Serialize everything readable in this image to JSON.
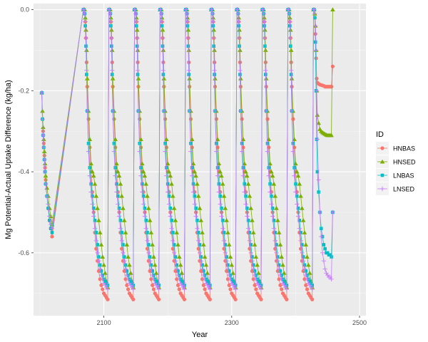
{
  "chart_data": {
    "type": "scatter",
    "xlabel": "Year",
    "ylabel": "Mg Potential-Actual Uptake Difference (kg/ha)",
    "x_ticks": [
      2100,
      2300,
      2500
    ],
    "y_ticks": [
      0.0,
      -0.2,
      -0.4,
      -0.6
    ],
    "y_tick_labels": [
      "0.0",
      "-0.2",
      "-0.4",
      "-0.6"
    ],
    "xlim": [
      1990,
      2510
    ],
    "ylim": [
      -0.755,
      0.015
    ],
    "grid": true,
    "legend": {
      "title": "ID",
      "position": "right"
    },
    "colors": {
      "HNBAS": "#F8766D",
      "HNSED": "#7CAE00",
      "LNBAS": "#00BFC4",
      "LNSED": "#C77CFF"
    },
    "cycle": {
      "starts": [
        2003,
        2068,
        2108,
        2148,
        2188,
        2228,
        2268,
        2308,
        2348,
        2388,
        2428
      ],
      "last_year": 2500,
      "offsets": [
        0,
        1,
        2,
        3,
        4,
        5,
        6,
        8,
        10,
        12,
        14,
        16,
        18,
        20,
        22,
        24,
        26,
        28,
        30,
        32,
        34,
        36,
        38,
        40
      ]
    },
    "series": [
      {
        "name": "HNBAS",
        "shape": "circle",
        "first_cycle": [
          -0.205,
          -0.27,
          -0.3,
          -0.33,
          -0.36,
          -0.39,
          -0.42,
          -0.46,
          -0.49,
          -0.52,
          -0.54,
          -0.56
        ],
        "cycle_values": [
          0.0,
          0.0,
          -0.01,
          -0.03,
          -0.07,
          -0.13,
          -0.19,
          -0.27,
          -0.34,
          -0.4,
          -0.45,
          -0.5,
          -0.55,
          -0.59,
          -0.62,
          -0.645,
          -0.665,
          -0.68,
          -0.69,
          -0.7,
          -0.705,
          -0.71,
          -0.715,
          -0.72
        ],
        "final_cycle": [
          0.0,
          0.0,
          -0.02,
          -0.06,
          -0.12,
          -0.17,
          -0.18,
          -0.183,
          -0.185,
          -0.186,
          -0.187,
          -0.188,
          -0.19,
          -0.19,
          -0.19,
          -0.19,
          -0.19,
          -0.19,
          -0.14
        ]
      },
      {
        "name": "HNSED",
        "shape": "triangle",
        "first_cycle": [
          -0.205,
          -0.25,
          -0.29,
          -0.32,
          -0.35,
          -0.38,
          -0.41,
          -0.44,
          -0.46,
          -0.49,
          -0.51,
          -0.53
        ],
        "cycle_values": [
          0.0,
          0.0,
          0.0,
          -0.02,
          -0.05,
          -0.1,
          -0.17,
          -0.25,
          -0.32,
          -0.38,
          -0.4,
          -0.41,
          -0.43,
          -0.46,
          -0.49,
          -0.52,
          -0.55,
          -0.58,
          -0.61,
          -0.63,
          -0.65,
          -0.67,
          -0.685,
          -0.7
        ],
        "final_cycle": [
          0.0,
          0.0,
          -0.01,
          -0.04,
          -0.1,
          -0.2,
          -0.26,
          -0.28,
          -0.295,
          -0.3,
          -0.303,
          -0.305,
          -0.307,
          -0.309,
          -0.31,
          -0.31,
          -0.31,
          -0.31,
          0.0
        ]
      },
      {
        "name": "LNBAS",
        "shape": "square",
        "first_cycle": [
          -0.205,
          -0.27,
          -0.31,
          -0.34,
          -0.37,
          -0.4,
          -0.43,
          -0.46,
          -0.49,
          -0.52,
          -0.54,
          -0.55
        ],
        "cycle_values": [
          0.0,
          0.0,
          -0.01,
          -0.04,
          -0.09,
          -0.16,
          -0.25,
          -0.33,
          -0.39,
          -0.43,
          -0.46,
          -0.49,
          -0.52,
          -0.55,
          -0.58,
          -0.61,
          -0.63,
          -0.645,
          -0.655,
          -0.665,
          -0.67,
          -0.675,
          -0.68,
          -0.68
        ],
        "final_cycle": [
          0.0,
          0.0,
          -0.02,
          -0.08,
          -0.2,
          -0.32,
          -0.4,
          -0.45,
          -0.5,
          -0.54,
          -0.56,
          -0.58,
          -0.59,
          -0.6,
          -0.6,
          -0.605,
          -0.605,
          -0.61,
          -0.5
        ]
      },
      {
        "name": "LNSED",
        "shape": "plus",
        "first_cycle": [
          -0.205,
          -0.27,
          -0.31,
          -0.34,
          -0.37,
          -0.4,
          -0.43,
          -0.46,
          -0.48,
          -0.51,
          -0.53,
          -0.54
        ],
        "cycle_values": [
          0.0,
          0.0,
          -0.01,
          -0.03,
          -0.07,
          -0.15,
          -0.25,
          -0.35,
          -0.41,
          -0.45,
          -0.48,
          -0.51,
          -0.54,
          -0.57,
          -0.6,
          -0.62,
          -0.64,
          -0.655,
          -0.665,
          -0.675,
          -0.68,
          -0.685,
          -0.69,
          -0.69
        ],
        "final_cycle": [
          0.0,
          0.0,
          -0.01,
          -0.04,
          -0.1,
          -0.2,
          -0.32,
          -0.42,
          -0.5,
          -0.56,
          -0.6,
          -0.62,
          -0.64,
          -0.65,
          -0.655,
          -0.66,
          -0.66,
          -0.665,
          -0.5
        ]
      }
    ]
  }
}
